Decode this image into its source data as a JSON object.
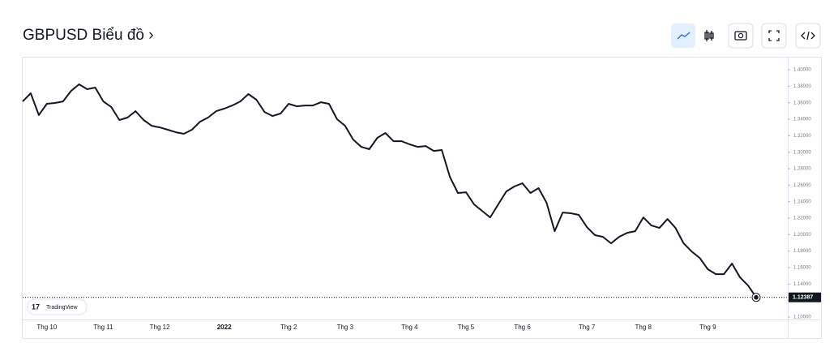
{
  "chart_data": {
    "type": "line",
    "title": "GBPUSD Biểu đồ ›",
    "watermark": "TradingView",
    "color": "#131722",
    "last_price": 1.12387,
    "categories": [
      null,
      null,
      null,
      "Thg 10",
      null,
      null,
      null,
      null,
      null,
      null,
      "Thg 11",
      null,
      null,
      null,
      null,
      null,
      null,
      "Thg 12",
      null,
      null,
      null,
      null,
      null,
      null,
      null,
      "2022",
      null,
      null,
      null,
      null,
      null,
      null,
      null,
      "Thg 2",
      null,
      null,
      null,
      null,
      null,
      null,
      "Thg 3",
      null,
      null,
      null,
      null,
      null,
      null,
      null,
      "Thg 4",
      null,
      null,
      null,
      null,
      null,
      null,
      "Thg 5",
      null,
      null,
      null,
      null,
      null,
      null,
      "Thg 6",
      null,
      null,
      null,
      null,
      null,
      null,
      null,
      "Thg 7",
      null,
      null,
      null,
      null,
      null,
      null,
      "Thg 8",
      null,
      null,
      null,
      null,
      null,
      null,
      null,
      "Thg 9",
      null,
      null,
      null,
      null,
      null,
      null
    ],
    "values": [
      1.3616,
      1.3715,
      1.345,
      1.3587,
      1.3597,
      1.3616,
      1.3744,
      1.3823,
      1.3764,
      1.3784,
      1.3616,
      1.3547,
      1.339,
      1.342,
      1.3498,
      1.339,
      1.3321,
      1.3301,
      1.3272,
      1.3242,
      1.3223,
      1.3272,
      1.337,
      1.342,
      1.3498,
      1.3528,
      1.3567,
      1.3616,
      1.3705,
      1.3636,
      1.3488,
      1.3439,
      1.3469,
      1.3587,
      1.3557,
      1.3567,
      1.3567,
      1.3606,
      1.3587,
      1.34,
      1.3321,
      1.3154,
      1.3065,
      1.3036,
      1.3174,
      1.3233,
      1.3134,
      1.3134,
      1.3095,
      1.3065,
      1.3075,
      1.3016,
      1.3026,
      1.2701,
      1.2505,
      1.2514,
      1.2367,
      1.2288,
      1.2209,
      1.2367,
      1.2524,
      1.2584,
      1.2623,
      1.2505,
      1.2564,
      1.2387,
      1.2042,
      1.2268,
      1.2259,
      1.2239,
      1.2091,
      1.1993,
      1.1973,
      1.1894,
      1.1973,
      1.2022,
      1.2042,
      1.2209,
      1.2111,
      1.2081,
      1.2189,
      1.2081,
      1.1894,
      1.1796,
      1.1717,
      1.158,
      1.152,
      1.152,
      1.1649,
      1.1481,
      1.1382,
      1.12387
    ],
    "ylim": [
      1.099,
      1.4148
    ],
    "yticks": [
      {
        "value": 1.1,
        "label": "1.10000"
      },
      {
        "value": 1.12,
        "label": "1.12000"
      },
      {
        "value": 1.14,
        "label": "1.14000"
      },
      {
        "value": 1.16,
        "label": "1.16000"
      },
      {
        "value": 1.18,
        "label": "1.18000"
      },
      {
        "value": 1.2,
        "label": "1.20000"
      },
      {
        "value": 1.22,
        "label": "1.22000"
      },
      {
        "value": 1.24,
        "label": "1.24000"
      },
      {
        "value": 1.26,
        "label": "1.26000"
      },
      {
        "value": 1.28,
        "label": "1.28000"
      },
      {
        "value": 1.3,
        "label": "1.30000"
      },
      {
        "value": 1.32,
        "label": "1.32000"
      },
      {
        "value": 1.34,
        "label": "1.34000"
      },
      {
        "value": 1.36,
        "label": "1.36000"
      },
      {
        "value": 1.38,
        "label": "1.38000"
      },
      {
        "value": 1.4,
        "label": "1.40000"
      }
    ],
    "grid": false
  }
}
